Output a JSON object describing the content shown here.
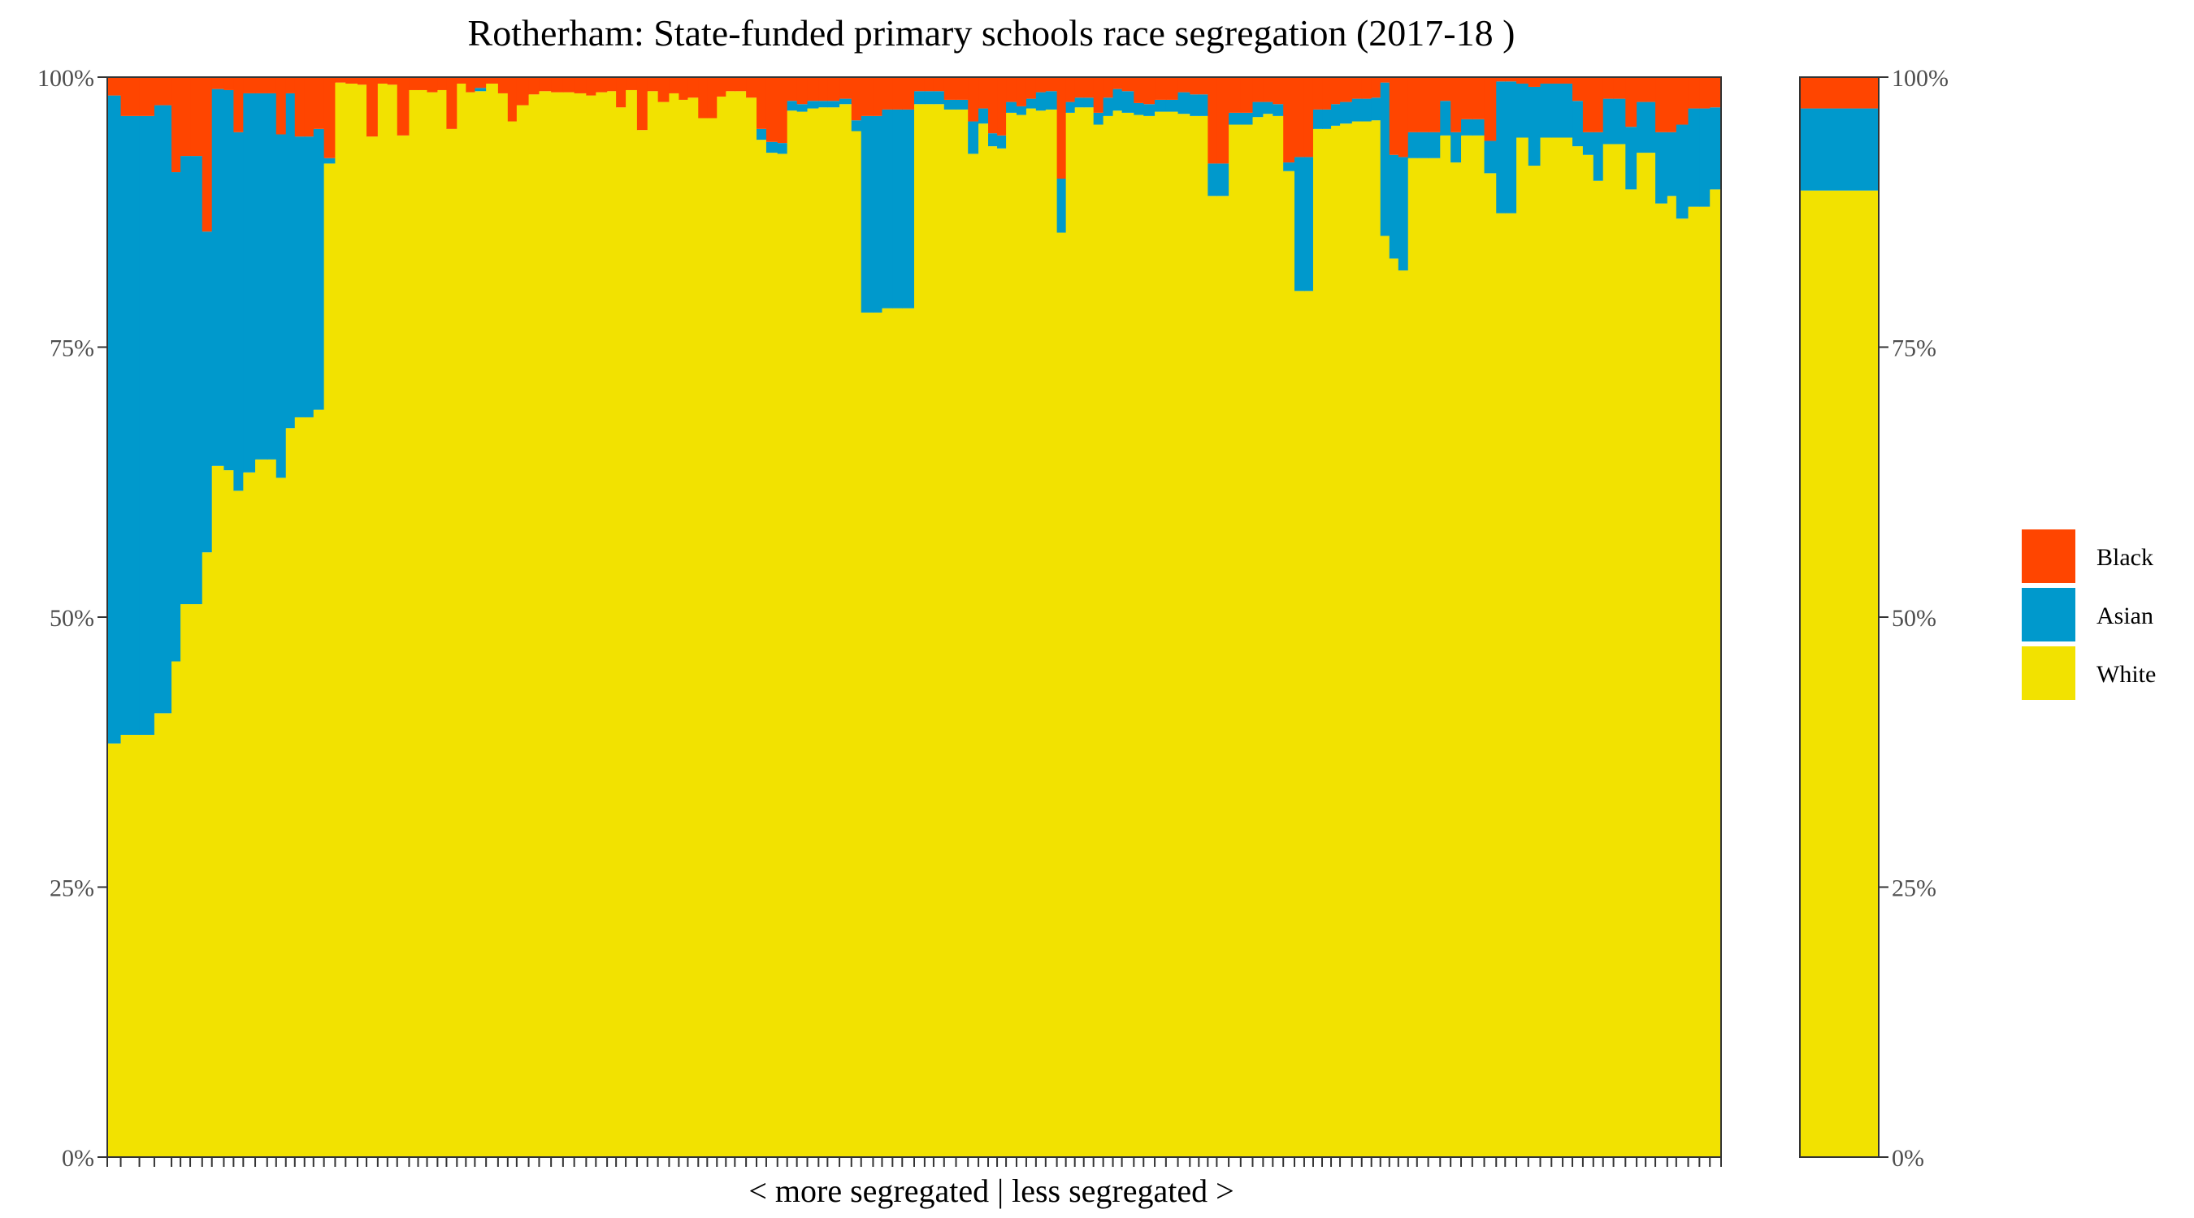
{
  "chart_data": {
    "type": "bar",
    "stacked": true,
    "title": "Rotherham: State-funded primary schools race segregation (2017-18 )",
    "xlabel": "< more segregated | less segregated >",
    "ylabel": "",
    "ylim": [
      0,
      100
    ],
    "yticks": [
      "0%",
      "25%",
      "50%",
      "75%",
      "100%"
    ],
    "y_tick_values": [
      0,
      25,
      50,
      75,
      100
    ],
    "legend_position": "right",
    "colors": {
      "Black": "#FF4500",
      "Asian": "#0099CC",
      "White": "#F2E200"
    },
    "legend": [
      "Black",
      "Asian",
      "White"
    ],
    "stack_order": [
      "White",
      "Asian",
      "Black"
    ],
    "schools": {
      "width": [
        1.8,
        2.5,
        2.0,
        2.3,
        1.2,
        1.3,
        1.6,
        1.3,
        1.6,
        1.3,
        1.3,
        1.6,
        1.6,
        1.2,
        1.3,
        1.2,
        1.3,
        1.2,
        1.4,
        1.5,
        1.4,
        1.6,
        1.2,
        1.5,
        1.3,
        1.3,
        1.6,
        1.2,
        1.2,
        1.4,
        1.2,
        1.4,
        1.2,
        1.2,
        1.5,
        1.6,
        1.3,
        1.2,
        1.6,
        1.4,
        1.6,
        1.6,
        1.5,
        1.6,
        1.3,
        1.5,
        1.2,
        1.3,
        1.5,
        1.4,
        1.4,
        1.5,
        1.3,
        1.2,
        1.4,
        1.2,
        1.3,
        1.2,
        1.2,
        1.5,
        1.4,
        1.3,
        1.5,
        1.3,
        1.3,
        1.4,
        1.5,
        1.2,
        1.6,
        1.6,
        1.3,
        1.6,
        1.2,
        1.4,
        1.3,
        1.6,
        1.4,
        1.2,
        1.4,
        1.6,
        1.6,
        1.4,
        1.3,
        1.2,
        1.2,
        1.4,
        1.3,
        1.3,
        1.3,
        1.5,
        1.2,
        1.2,
        1.2,
        1.3,
        1.3,
        1.3,
        1.2,
        1.6,
        1.3,
        1.5,
        1.5,
        1.6,
        1.6,
        1.2,
        1.2,
        1.2,
        1.6,
        1.6,
        1.6,
        1.4,
        1.3,
        1.4,
        1.5,
        1.3,
        1.2,
        1.2,
        1.2,
        1.2,
        1.6,
        1.3,
        1.3,
        1.2,
        1.2,
        1.2,
        1.3,
        1.2,
        1.5,
        1.6,
        1.4,
        1.4,
        1.5,
        1.6,
        1.6,
        1.2,
        1.5,
        1.6,
        1.6,
        1.5,
        1.5,
        1.3,
        1.4,
        1.4,
        1.3,
        1.4,
        1.6,
        1.5,
        1.2,
        1.3,
        1.6,
        1.2,
        1.6,
        1.5,
        1.4,
        1.5
      ],
      "white": [
        38.3,
        39.1,
        39.1,
        41.1,
        45.9,
        51.2,
        51.2,
        56.0,
        64.0,
        63.6,
        61.7,
        63.4,
        64.6,
        64.6,
        62.9,
        67.5,
        68.5,
        68.5,
        69.2,
        92.0,
        99.5,
        99.4,
        99.3,
        94.5,
        99.4,
        99.3,
        94.6,
        98.8,
        98.8,
        98.6,
        98.8,
        95.2,
        99.4,
        98.6,
        98.7,
        99.4,
        98.5,
        95.9,
        97.4,
        98.4,
        98.7,
        98.6,
        98.6,
        98.5,
        98.3,
        98.6,
        98.7,
        97.2,
        98.8,
        95.1,
        98.7,
        97.7,
        98.5,
        97.9,
        98.1,
        96.2,
        96.2,
        98.2,
        98.7,
        98.7,
        98.1,
        94.2,
        93.0,
        92.9,
        96.9,
        96.8,
        97.1,
        97.2,
        97.2,
        97.5,
        95.0,
        78.2,
        78.2,
        78.6,
        78.6,
        78.6,
        97.5,
        97.5,
        97.5,
        97.0,
        97.0,
        92.9,
        95.7,
        93.6,
        93.4,
        96.7,
        96.5,
        97.1,
        96.9,
        97.0,
        85.6,
        96.7,
        97.2,
        97.2,
        95.6,
        96.4,
        96.9,
        96.7,
        96.5,
        96.4,
        96.8,
        96.8,
        96.6,
        96.4,
        96.4,
        89.0,
        89.0,
        95.6,
        95.6,
        96.3,
        96.6,
        96.4,
        91.3,
        80.2,
        80.2,
        95.2,
        95.2,
        95.5,
        95.7,
        95.9,
        95.9,
        96.0,
        85.3,
        83.2,
        82.1,
        92.5,
        92.5,
        92.5,
        94.6,
        92.1,
        94.6,
        94.6,
        91.1,
        87.4,
        87.4,
        94.4,
        91.8,
        94.4,
        94.4,
        94.4,
        93.6,
        92.8,
        90.4,
        93.8,
        93.8,
        89.6,
        93.0,
        93.0,
        88.3,
        89.0,
        86.9,
        88.0,
        88.0,
        89.6,
        89.6
      ],
      "asian": [
        60.0,
        57.3,
        57.3,
        56.3,
        45.3,
        41.5,
        41.5,
        29.7,
        34.9,
        35.2,
        33.2,
        35.1,
        33.9,
        33.9,
        31.8,
        31.0,
        26.0,
        26.0,
        26.0,
        0.5,
        0,
        0,
        0,
        0,
        0,
        0,
        0,
        0,
        0,
        0,
        0,
        0,
        0,
        0,
        0.3,
        0,
        0,
        0,
        0,
        0,
        0,
        0,
        0,
        0,
        0,
        0,
        0,
        0,
        0,
        0,
        0,
        0,
        0,
        0,
        0,
        0,
        0,
        0,
        0,
        0,
        0,
        1.0,
        1.0,
        1.0,
        0.9,
        0.7,
        0.7,
        0.6,
        0.6,
        0.5,
        1.0,
        18.2,
        18.2,
        18.4,
        18.4,
        18.4,
        1.2,
        1.2,
        1.2,
        0.9,
        0.9,
        3.0,
        1.4,
        1.2,
        1.2,
        1.0,
        0.8,
        0.9,
        1.7,
        1.7,
        5.0,
        1.0,
        0.9,
        0.9,
        1.1,
        1.7,
        2.0,
        2.0,
        1.1,
        1.1,
        1.1,
        1.1,
        2.0,
        2.0,
        2.0,
        3.0,
        3.0,
        1.1,
        1.1,
        1.4,
        1.1,
        1.1,
        0.8,
        12.4,
        12.4,
        1.8,
        1.8,
        2.0,
        2.0,
        2.1,
        2.1,
        2.1,
        14.2,
        9.6,
        10.5,
        2.4,
        2.4,
        2.4,
        3.2,
        2.8,
        1.5,
        1.5,
        3.0,
        12.2,
        12.2,
        5.0,
        7.3,
        5.0,
        5.0,
        5.0,
        4.2,
        2.1,
        4.5,
        4.2,
        4.2,
        5.8,
        4.7,
        4.7,
        6.6,
        5.9,
        8.7,
        9.1,
        9.1,
        7.6,
        7.6
      ],
      "black": [
        1.7,
        3.6,
        3.6,
        2.6,
        8.8,
        7.3,
        7.3,
        14.3,
        1.1,
        1.2,
        5.1,
        1.5,
        1.5,
        1.5,
        5.3,
        1.5,
        5.5,
        5.5,
        4.8,
        7.5,
        0.5,
        0.6,
        0.7,
        5.5,
        0.6,
        0.7,
        5.4,
        1.2,
        1.2,
        1.4,
        1.2,
        4.8,
        0.6,
        1.4,
        1.0,
        0.6,
        1.5,
        4.1,
        2.6,
        1.6,
        1.3,
        1.4,
        1.4,
        1.5,
        1.7,
        1.4,
        1.3,
        2.8,
        1.2,
        4.9,
        1.3,
        2.3,
        1.5,
        2.1,
        1.9,
        3.8,
        3.8,
        1.8,
        1.3,
        1.3,
        1.9,
        4.8,
        6.0,
        6.1,
        2.2,
        2.5,
        2.2,
        2.2,
        2.2,
        2.0,
        4.0,
        3.6,
        3.6,
        3.0,
        3.0,
        3.0,
        1.3,
        1.3,
        1.3,
        2.1,
        2.1,
        4.1,
        2.9,
        5.2,
        5.4,
        2.3,
        2.7,
        2.0,
        1.4,
        1.3,
        9.4,
        2.3,
        1.9,
        1.9,
        3.3,
        1.9,
        1.1,
        1.3,
        2.4,
        2.5,
        2.1,
        2.1,
        1.4,
        1.6,
        1.6,
        8.0,
        8.0,
        3.3,
        3.3,
        2.3,
        2.3,
        2.5,
        7.9,
        7.4,
        7.4,
        3.0,
        3.0,
        2.5,
        2.3,
        2.0,
        2.0,
        1.9,
        0.5,
        7.2,
        7.4,
        5.1,
        5.1,
        5.1,
        2.2,
        5.1,
        3.9,
        3.9,
        5.9,
        0.4,
        0.4,
        0.6,
        0.9,
        0.6,
        0.6,
        0.6,
        2.2,
        5.1,
        5.1,
        2.0,
        2.0,
        4.6,
        2.3,
        2.3,
        5.1,
        5.1,
        4.4,
        2.9,
        2.9,
        2.8,
        2.8
      ]
    },
    "total": {
      "white": 89.5,
      "asian": 7.6,
      "black": 2.9
    }
  }
}
